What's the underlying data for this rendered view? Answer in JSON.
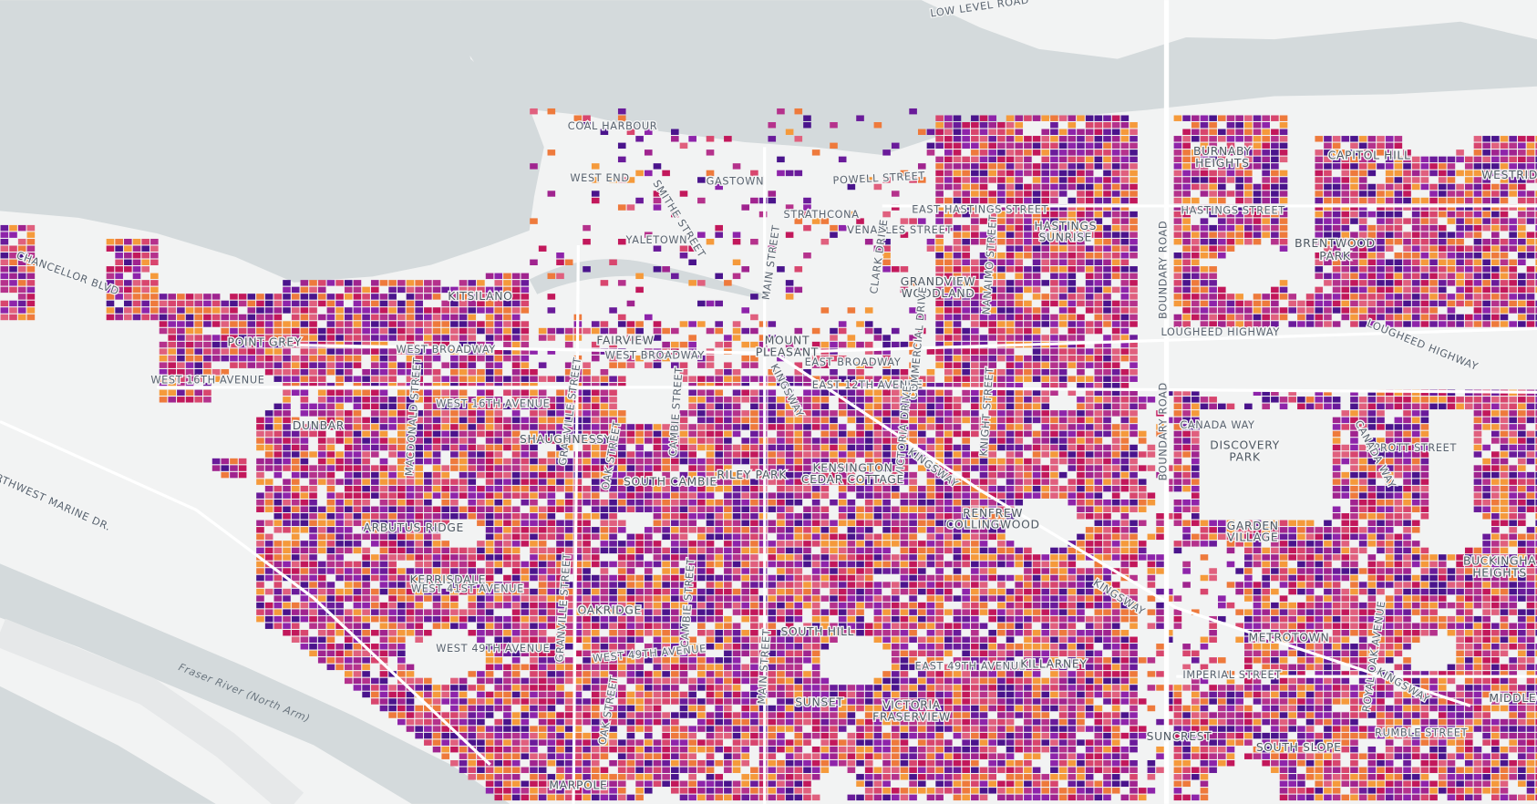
{
  "map": {
    "labels": [
      "LOW LEVEL ROAD",
      "COAL HARBOUR",
      "WEST END",
      "GASTOWN",
      "POWELL STREET",
      "SMITHE STREET",
      "YALETOWN",
      "STRATHCONA",
      "VENABLES STREET",
      "EAST HASTINGS STREET",
      "HASTINGS",
      "SUNRISE",
      "BURNABY",
      "HEIGHTS",
      "CAPITOL HILL",
      "WESTRIDG",
      "HASTINGS STREET",
      "BRENTWOOD",
      "PARK",
      "CHANCELLOR BLVD",
      "KITSILANO",
      "MAIN STREET",
      "CLARK DRIVE",
      "GRANDVIEW",
      "WOODLAND",
      "NANAIMO STREET",
      "BOUNDARY ROAD",
      "LOUGHEED HIGHWAY",
      "LOUGHEED HIGHWAY",
      "POINT GREY",
      "WEST BROADWAY",
      "FAIRVIEW",
      "WEST BROADWAY",
      "MOUNT",
      "PLEASANT",
      "EAST BROADWAY",
      "WEST 16TH AVENUE",
      "WEST 16TH AVENUE",
      "EAST 12TH AVENUE",
      "COMMERCIAL DRIVE",
      "KINGSWAY",
      "GRANVILLE STREET",
      "MACDONALD STREET",
      "CAMBIE STREET",
      "DUNBAR",
      "SHAUGHNESSY",
      "OAK STREET",
      "CANADA WAY",
      "DISCOVERY",
      "PARK",
      "SPROTT STREET",
      "VICTORIA DRIVE",
      "KINGSWAY",
      "RILEY PARK",
      "KENSINGTON",
      "CEDAR COTTAGE",
      "SOUTH CAMBIE",
      "CANADA WAY",
      "NORTHWEST MARINE DR.",
      "RENFREW",
      "COLLINGWOOD",
      "ARBUTUS RIDGE",
      "GARDEN",
      "VILLAGE",
      "BUCKINGHA",
      "HEIGHTS",
      "KERRISDALE",
      "WEST 41ST AVENUE",
      "KINGSWAY",
      "OAKRIDGE",
      "SOUTH HILL",
      "METROTOWN",
      "WEST 49TH AVENUE",
      "WEST 49TH AVENUE",
      "EAST 49TH AVENUE",
      "KILLARNEY",
      "IMPERIAL STREET",
      "ROYAL OAK AVENUE",
      "KINGSWAY",
      "MIDDLEG",
      "Fraser River (North Arm)",
      "SUNSET",
      "VICTORIA",
      "FRASERVIEW",
      "SUNCREST",
      "RUMBLE STREET",
      "SOUTH SLOPE",
      "MARPOLE",
      "MAIN STREET",
      "CAMBIE STREET",
      "GRANVILLE STREET",
      "OAK STREET",
      "BOUNDARY ROAD",
      "KNIGHT STREET"
    ],
    "attribution": "CARTO"
  }
}
